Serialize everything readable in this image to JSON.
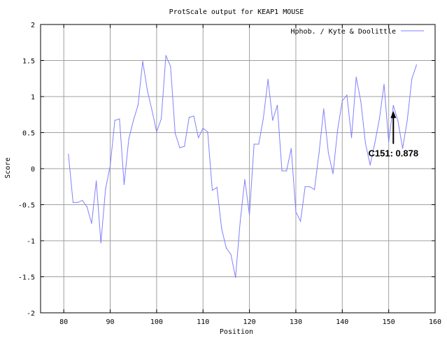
{
  "chart_data": {
    "type": "line",
    "title": "ProtScale output for KEAP1 MOUSE",
    "xlabel": "Position",
    "ylabel": "Score",
    "xlim": [
      75,
      160
    ],
    "ylim": [
      -2,
      2
    ],
    "x_ticks": [
      80,
      90,
      100,
      110,
      120,
      130,
      140,
      150,
      160
    ],
    "y_ticks": [
      -2,
      -1.5,
      -1,
      -0.5,
      0,
      0.5,
      1,
      1.5,
      2
    ],
    "x_tick_labels": [
      "80",
      "90",
      "100",
      "110",
      "120",
      "130",
      "140",
      "150",
      "160"
    ],
    "y_tick_labels": [
      "-2",
      "-1.5",
      "-1",
      "-0.5",
      "0",
      "0.5",
      "1",
      "1.5",
      "2"
    ],
    "grid": true,
    "legend_position": "top-right",
    "series": [
      {
        "name": "Hphob. / Kyte & Doolittle",
        "color": "#8080ff",
        "x": [
          81,
          82,
          83,
          84,
          85,
          86,
          87,
          88,
          89,
          90,
          91,
          92,
          93,
          94,
          95,
          96,
          97,
          98,
          99,
          100,
          101,
          102,
          103,
          104,
          105,
          106,
          107,
          108,
          109,
          110,
          111,
          112,
          113,
          114,
          115,
          116,
          117,
          118,
          119,
          120,
          121,
          122,
          123,
          124,
          125,
          126,
          127,
          128,
          129,
          130,
          131,
          132,
          133,
          134,
          135,
          136,
          137,
          138,
          139,
          140,
          141,
          142,
          143,
          144,
          145,
          146,
          147,
          148,
          149,
          150,
          151,
          152,
          153,
          154,
          155,
          156
        ],
        "values": [
          0.2,
          -0.47,
          -0.47,
          -0.44,
          -0.53,
          -0.76,
          -0.17,
          -1.03,
          -0.28,
          0.04,
          0.67,
          0.69,
          -0.22,
          0.41,
          0.67,
          0.88,
          1.49,
          1.09,
          0.81,
          0.51,
          0.69,
          1.57,
          1.42,
          0.49,
          0.29,
          0.31,
          0.71,
          0.73,
          0.43,
          0.56,
          0.51,
          -0.3,
          -0.26,
          -0.83,
          -1.1,
          -1.19,
          -1.51,
          -0.74,
          -0.15,
          -0.64,
          0.34,
          0.34,
          0.7,
          1.24,
          0.67,
          0.88,
          -0.03,
          -0.03,
          0.28,
          -0.6,
          -0.73,
          -0.25,
          -0.25,
          -0.29,
          0.22,
          0.83,
          0.22,
          -0.07,
          0.54,
          0.94,
          1.02,
          0.43,
          1.27,
          0.93,
          0.35,
          0.05,
          0.35,
          0.69,
          1.17,
          0.37,
          0.878,
          0.66,
          0.28,
          0.67,
          1.25,
          1.44
        ]
      }
    ],
    "annotation": {
      "text": "C151: 0.878",
      "x": 151,
      "y": 0.878
    }
  }
}
